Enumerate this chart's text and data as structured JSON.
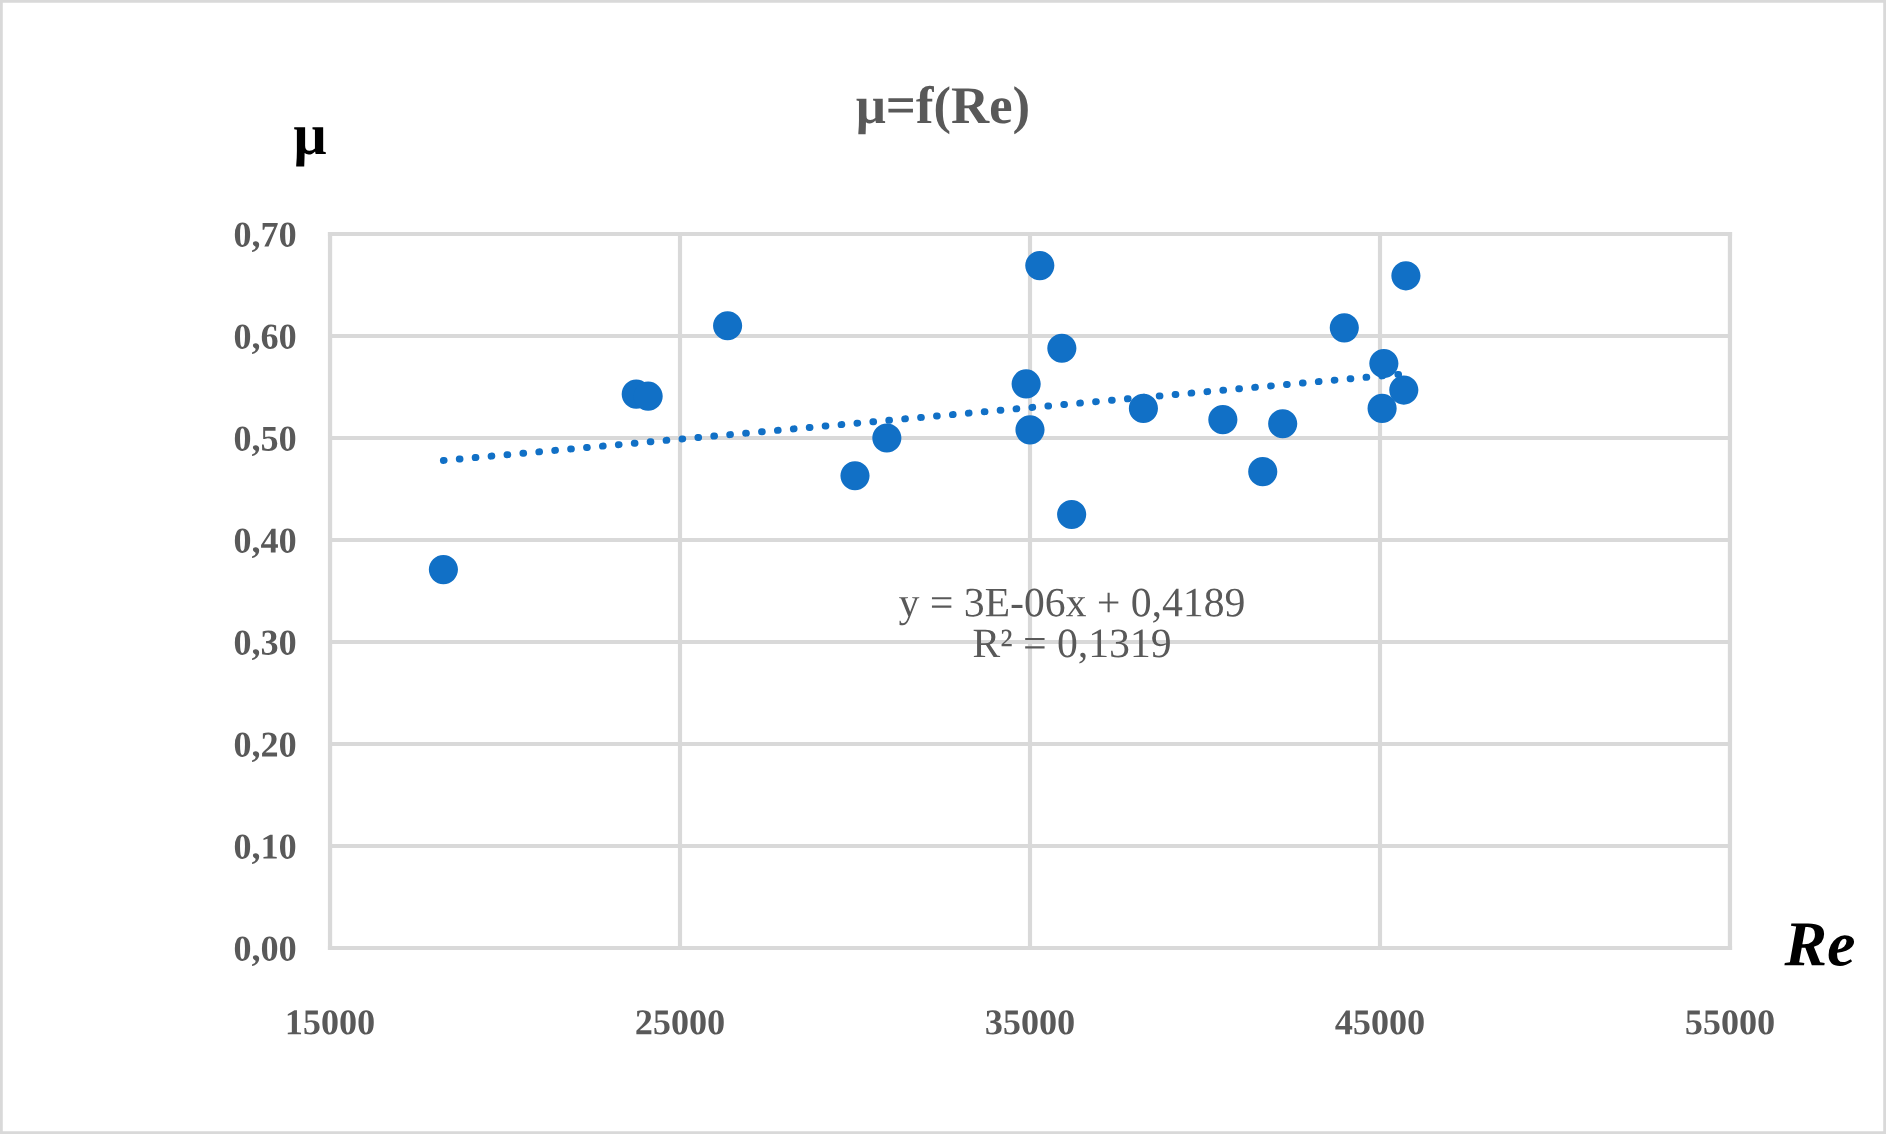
{
  "chart_data": {
    "type": "scatter",
    "title": "μ=f(Re)",
    "xlabel": "Re",
    "ylabel": "μ",
    "series": [
      {
        "color": "#1170c6",
        "marker": "circle",
        "x": [
          18240,
          23750,
          24090,
          26360,
          30000,
          30910,
          34890,
          35000,
          35280,
          35910,
          36190,
          38240,
          40510,
          41650,
          42220,
          43980,
          45110,
          45060,
          45680,
          45740
        ],
        "values": [
          0.371,
          0.543,
          0.541,
          0.61,
          0.463,
          0.5,
          0.553,
          0.508,
          0.669,
          0.588,
          0.425,
          0.529,
          0.518,
          0.467,
          0.514,
          0.608,
          0.573,
          0.529,
          0.547,
          0.659
        ]
      },
      {
        "type": "line",
        "color": "#1170c6",
        "line_style": "dotted",
        "x": [
          18240,
          45740
        ],
        "values": [
          0.478,
          0.563
        ]
      }
    ],
    "annotations": [
      "y = 3E-06x + 0,4189\nR² = 0,1319"
    ],
    "xlim": [
      15000,
      55000
    ],
    "xticks": [
      15000,
      25000,
      35000,
      45000,
      55000
    ],
    "ylim": [
      0,
      0.7
    ],
    "yticks": [
      {
        "value": 0,
        "label": "0,00"
      },
      {
        "value": 0.1,
        "label": "0,10"
      },
      {
        "value": 0.2,
        "label": "0,20"
      },
      {
        "value": 0.3,
        "label": "0,30"
      },
      {
        "value": 0.4,
        "label": "0,40"
      },
      {
        "value": 0.5,
        "label": "0,50"
      },
      {
        "value": 0.6,
        "label": "0,60"
      },
      {
        "value": 0.7,
        "label": "0,70"
      }
    ],
    "grid": true,
    "legend": false
  }
}
